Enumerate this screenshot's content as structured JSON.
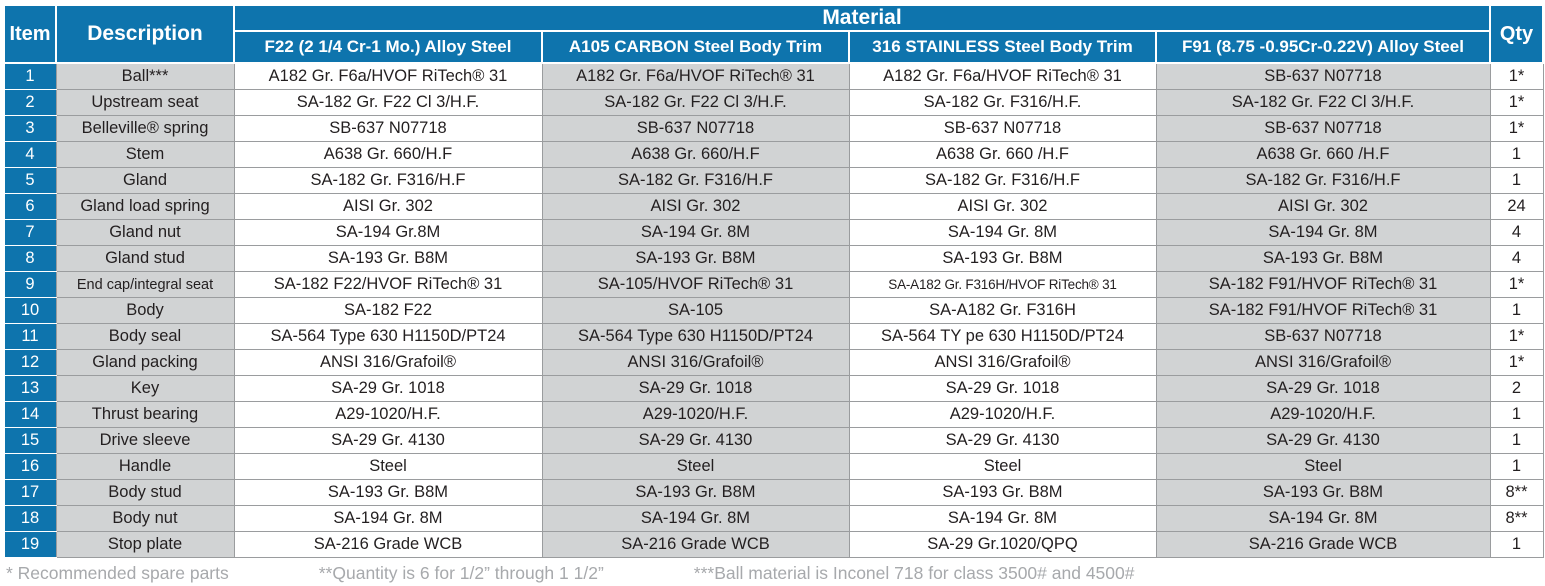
{
  "colors": {
    "header_blue": "#0e74ad",
    "cell_gray": "#d1d3d4",
    "border_gray": "#9a9c9e",
    "text_black": "#231f20",
    "footnote_gray": "#a7a9ac"
  },
  "header": {
    "item": "Item",
    "description": "Description",
    "material": "Material",
    "qty": "Qty",
    "material_columns": [
      "F22 (2 1/4 Cr-1 Mo.) Alloy Steel",
      "A105 CARBON Steel Body Trim",
      "316 STAINLESS Steel Body Trim",
      "F91 (8.75 -0.95Cr-0.22V) Alloy Steel"
    ]
  },
  "table": {
    "rows": [
      {
        "item": "1",
        "description": "Ball***",
        "materials": [
          "A182 Gr. F6a/HVOF RiTech® 31",
          "A182 Gr. F6a/HVOF RiTech® 31",
          "A182 Gr. F6a/HVOF RiTech® 31",
          "SB-637 N07718"
        ],
        "qty": "1*"
      },
      {
        "item": "2",
        "description": "Upstream seat",
        "materials": [
          "SA-182 Gr. F22 Cl 3/H.F.",
          "SA-182 Gr. F22 Cl 3/H.F.",
          "SA-182 Gr. F316/H.F.",
          "SA-182 Gr. F22 Cl 3/H.F."
        ],
        "qty": "1*"
      },
      {
        "item": "3",
        "description": "Belleville® spring",
        "materials": [
          "SB-637 N07718",
          "SB-637 N07718",
          "SB-637 N07718",
          "SB-637 N07718"
        ],
        "qty": "1*"
      },
      {
        "item": "4",
        "description": "Stem",
        "materials": [
          "A638 Gr. 660/H.F",
          "A638 Gr. 660/H.F",
          "A638 Gr. 660 /H.F",
          "A638 Gr. 660 /H.F"
        ],
        "qty": "1"
      },
      {
        "item": "5",
        "description": "Gland",
        "materials": [
          "SA-182 Gr. F316/H.F",
          "SA-182 Gr. F316/H.F",
          "SA-182 Gr. F316/H.F",
          "SA-182 Gr. F316/H.F"
        ],
        "qty": "1"
      },
      {
        "item": "6",
        "description": "Gland load spring",
        "materials": [
          "AISI Gr. 302",
          "AISI Gr. 302",
          "AISI Gr. 302",
          "AISI Gr. 302"
        ],
        "qty": "24"
      },
      {
        "item": "7",
        "description": "Gland nut",
        "materials": [
          "SA-194 Gr.8M",
          "SA-194 Gr. 8M",
          "SA-194 Gr. 8M",
          "SA-194 Gr. 8M"
        ],
        "qty": "4"
      },
      {
        "item": "8",
        "description": "Gland stud",
        "materials": [
          "SA-193 Gr. B8M",
          "SA-193 Gr. B8M",
          "SA-193 Gr. B8M",
          "SA-193 Gr. B8M"
        ],
        "qty": "4"
      },
      {
        "item": "9",
        "description": "End cap/integral seat",
        "materials": [
          "SA-182 F22/HVOF RiTech® 31",
          "SA-105/HVOF RiTech® 31",
          "SA-A182 Gr. F316H/HVOF RiTech® 31",
          "SA-182 F91/HVOF RiTech® 31"
        ],
        "qty": "1*"
      },
      {
        "item": "10",
        "description": "Body",
        "materials": [
          "SA-182 F22",
          "SA-105",
          "SA-A182 Gr. F316H",
          "SA-182 F91/HVOF RiTech® 31"
        ],
        "qty": "1"
      },
      {
        "item": "11",
        "description": "Body seal",
        "materials": [
          "SA-564 Type 630 H1150D/PT24",
          "SA-564 Type 630 H1150D/PT24",
          "SA-564 TY pe 630 H1150D/PT24",
          "SB-637 N07718"
        ],
        "qty": "1*"
      },
      {
        "item": "12",
        "description": "Gland packing",
        "materials": [
          "ANSI 316/Grafoil®",
          "ANSI 316/Grafoil®",
          "ANSI 316/Grafoil®",
          "ANSI 316/Grafoil®"
        ],
        "qty": "1*"
      },
      {
        "item": "13",
        "description": "Key",
        "materials": [
          "SA-29 Gr. 1018",
          "SA-29 Gr. 1018",
          "SA-29 Gr. 1018",
          "SA-29 Gr. 1018"
        ],
        "qty": "2"
      },
      {
        "item": "14",
        "description": "Thrust bearing",
        "materials": [
          "A29-1020/H.F.",
          "A29-1020/H.F.",
          "A29-1020/H.F.",
          "A29-1020/H.F."
        ],
        "qty": "1"
      },
      {
        "item": "15",
        "description": "Drive sleeve",
        "materials": [
          "SA-29 Gr. 4130",
          "SA-29 Gr. 4130",
          "SA-29 Gr. 4130",
          "SA-29 Gr. 4130"
        ],
        "qty": "1"
      },
      {
        "item": "16",
        "description": "Handle",
        "materials": [
          "Steel",
          "Steel",
          "Steel",
          "Steel"
        ],
        "qty": "1"
      },
      {
        "item": "17",
        "description": "Body stud",
        "materials": [
          "SA-193 Gr. B8M",
          "SA-193 Gr. B8M",
          "SA-193 Gr. B8M",
          "SA-193 Gr. B8M"
        ],
        "qty": "8**"
      },
      {
        "item": "18",
        "description": "Body nut",
        "materials": [
          "SA-194 Gr. 8M",
          "SA-194 Gr. 8M",
          "SA-194 Gr. 8M",
          "SA-194 Gr. 8M"
        ],
        "qty": "8**"
      },
      {
        "item": "19",
        "description": "Stop plate",
        "materials": [
          "SA-216 Grade WCB",
          "SA-216 Grade WCB",
          "SA-29 Gr.1020/QPQ",
          "SA-216 Grade WCB"
        ],
        "qty": "1"
      }
    ]
  },
  "footnotes": [
    "* Recommended spare parts",
    "**Quantity is 6 for 1/2” through 1 1/2”",
    "***Ball material is Inconel 718 for class 3500# and 4500#"
  ]
}
